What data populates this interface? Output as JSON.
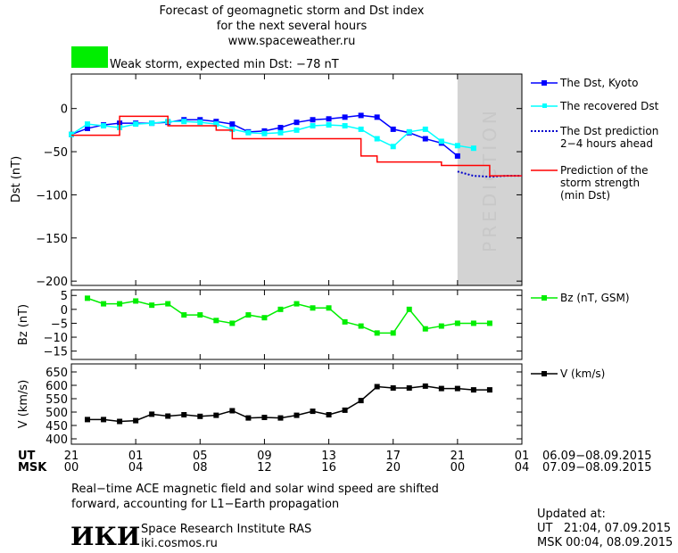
{
  "header": {
    "title_line1": "Forecast of geomagnetic storm and Dst index",
    "title_line2": "for the next several hours",
    "url": "www.spaceweather.ru",
    "status_text": "Weak storm, expected min Dst: −78 nT",
    "status_color": "#00ee00"
  },
  "axes": {
    "x_hour_index": [
      0,
      4,
      8,
      12,
      16,
      20,
      24,
      28
    ],
    "ut_row_label": "UT",
    "msk_row_label": "MSK",
    "ut_ticks": [
      "21",
      "01",
      "05",
      "09",
      "13",
      "17",
      "21",
      "01"
    ],
    "msk_ticks": [
      "00",
      "04",
      "08",
      "12",
      "16",
      "20",
      "00",
      "04"
    ],
    "ut_dates": "06.09−08.09.2015",
    "msk_dates": "07.09−08.09.2015"
  },
  "prediction_label": "PREDICTION",
  "chart_data": [
    {
      "type": "line",
      "ylabel": "Dst (nT)",
      "ylim": [
        -205,
        40
      ],
      "yticks": [
        0,
        -50,
        -100,
        -150,
        -200
      ],
      "ytick_labels": [
        "0",
        "−50",
        "−100",
        "−150",
        "−200"
      ],
      "prediction_start": 24,
      "series": [
        {
          "name": "The Dst, Kyoto",
          "color": "#0000ff",
          "marker": "square",
          "x": [
            0,
            1,
            2,
            3,
            4,
            5,
            6,
            7,
            8,
            9,
            10,
            11,
            12,
            13,
            14,
            15,
            16,
            17,
            18,
            19,
            20,
            21,
            22,
            23,
            24
          ],
          "y": [
            -30,
            -23,
            -19,
            -17,
            -17,
            -17,
            -16,
            -13,
            -13,
            -15,
            -18,
            -27,
            -26,
            -22,
            -16,
            -13,
            -12,
            -10,
            -8,
            -10,
            -24,
            -28,
            -35,
            -40,
            -55
          ]
        },
        {
          "name": "The recovered Dst",
          "color": "#00ffff",
          "marker": "square",
          "x": [
            0,
            1,
            2,
            3,
            4,
            5,
            6,
            7,
            8,
            9,
            10,
            11,
            12,
            13,
            14,
            15,
            16,
            17,
            18,
            19,
            20,
            21,
            22,
            23,
            24,
            25
          ],
          "y": [
            -30,
            -18,
            -20,
            -22,
            -18,
            -17,
            -15,
            -15,
            -16,
            -18,
            -24,
            -28,
            -29,
            -28,
            -25,
            -20,
            -19,
            -20,
            -24,
            -35,
            -44,
            -27,
            -24,
            -38,
            -43,
            -46
          ]
        },
        {
          "name": "The Dst prediction\n2−4 hours ahead",
          "color": "#0000cc",
          "style": "dotted",
          "x": [
            24,
            25,
            26,
            27,
            28
          ],
          "y": [
            -73,
            -78,
            -79,
            -78,
            -78
          ]
        },
        {
          "name": "Prediction of the\nstorm strength\n(min Dst)",
          "color": "#ff0000",
          "style": "step",
          "x": [
            0,
            2,
            3,
            5,
            6,
            8,
            9,
            10,
            16,
            18,
            19,
            21,
            23,
            24,
            26,
            28
          ],
          "y": [
            -31,
            -31,
            -9,
            -9,
            -20,
            -20,
            -25,
            -35,
            -35,
            -55,
            -62,
            -62,
            -66,
            -66,
            -78,
            -78
          ]
        }
      ]
    },
    {
      "type": "line",
      "ylabel": "Bz (nT)",
      "ylim": [
        -18,
        7
      ],
      "yticks": [
        5,
        0,
        -5,
        -10,
        -15
      ],
      "ytick_labels": [
        "5",
        "0",
        "−5",
        "−10",
        "−15"
      ],
      "series": [
        {
          "name": "Bz (nT, GSM)",
          "color": "#00ee00",
          "marker": "square",
          "x": [
            1,
            2,
            3,
            4,
            5,
            6,
            7,
            8,
            9,
            10,
            11,
            12,
            13,
            14,
            15,
            16,
            17,
            18,
            19,
            20,
            21,
            22,
            23,
            24,
            25,
            26
          ],
          "y": [
            4,
            2,
            2,
            3,
            1.5,
            2,
            -2,
            -2,
            -4,
            -5,
            -2,
            -3,
            0,
            2,
            0.5,
            0.5,
            -4.5,
            -6,
            -8.5,
            -8.5,
            0,
            -7,
            -6,
            -5,
            -5,
            -5
          ]
        }
      ]
    },
    {
      "type": "line",
      "ylabel": "V (km/s)",
      "ylim": [
        380,
        680
      ],
      "yticks": [
        650,
        600,
        550,
        500,
        450,
        400
      ],
      "ytick_labels": [
        "650",
        "600",
        "550",
        "500",
        "450",
        "400"
      ],
      "series": [
        {
          "name": "V (km/s)",
          "color": "#000000",
          "marker": "square",
          "x": [
            1,
            2,
            3,
            4,
            5,
            6,
            7,
            8,
            9,
            10,
            11,
            12,
            13,
            14,
            15,
            16,
            17,
            18,
            19,
            20,
            21,
            22,
            23,
            24,
            25,
            26
          ],
          "y": [
            472,
            472,
            465,
            468,
            492,
            485,
            490,
            484,
            488,
            505,
            478,
            480,
            478,
            488,
            503,
            490,
            507,
            543,
            595,
            590,
            590,
            597,
            588,
            588,
            583,
            583
          ]
        }
      ]
    }
  ],
  "footer": {
    "note_line1": "Real−time ACE magnetic field and solar wind speed are shifted",
    "note_line2": "forward, accounting for L1−Earth propagation",
    "institute": "Space Research Institute RAS",
    "site": "iki.cosmos.ru",
    "logo_text": "ИКИ",
    "updated_label": "Updated at:",
    "updated_ut": "UT   21:04, 07.09.2015",
    "updated_msk": "MSK 00:04, 08.09.2015"
  }
}
